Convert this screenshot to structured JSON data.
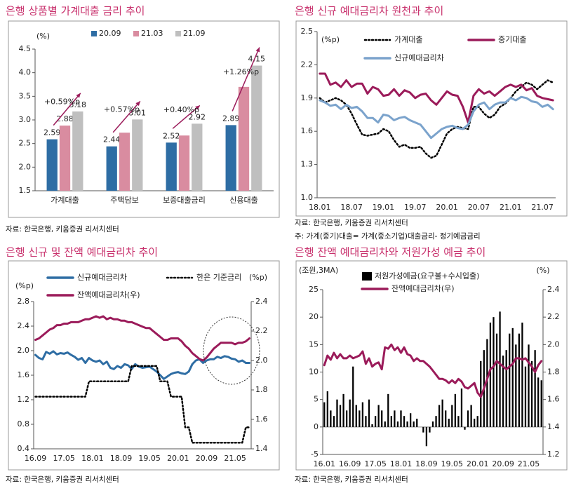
{
  "chart_data": [
    {
      "type": "bar",
      "title": "은행 상품별 가계대출 금리 추이",
      "source": "자료: 한국은행, 키움증권 리서치센터",
      "y_unit": "(%)",
      "categories": [
        "가계대출",
        "주택담보",
        "보증대출금리",
        "신용대출"
      ],
      "series": [
        {
          "name": "20.09",
          "color": "#2e6da4",
          "label_color": "#2e6da4",
          "values": [
            2.59,
            2.44,
            2.52,
            2.89
          ],
          "value_labels": [
            "2.59",
            "2.44",
            "2.52",
            "2.89"
          ]
        },
        {
          "name": "21.03",
          "color": "#d98ca0",
          "label_color": "#d98ca0",
          "values": [
            2.88,
            2.73,
            2.67,
            3.7
          ],
          "value_labels": [
            "2.88",
            null,
            null,
            null
          ]
        },
        {
          "name": "21.09",
          "color": "#bfbfbf",
          "label_color": "#222222",
          "values": [
            3.18,
            3.01,
            2.92,
            4.15
          ],
          "value_labels": [
            "3.18",
            "3.01",
            "2.92",
            "4.15"
          ]
        }
      ],
      "annotations": [
        "+0.59%p",
        "+0.57%p",
        "+0.40%p",
        "+1.26%p"
      ],
      "annotation_color": "#9b1b5a",
      "ylim": [
        1.5,
        4.5
      ],
      "yticks": [
        1.5,
        {
          "value": 2,
          "label": "2.0"
        },
        2.5,
        {
          "value": 3,
          "label": "3.0"
        },
        3.5,
        {
          "value": 4,
          "label": "4.0"
        },
        4.5
      ]
    },
    {
      "type": "line",
      "title": "은행 신규 예대금리차 원천과 추이",
      "source": "자료: 한국은행, 키움증권 리서치센터",
      "note": "주: 가계(중기)대출= 가계(중소기업)대출금리- 정기예금금리",
      "y_unit": "(%p)",
      "categories": [
        "18.01",
        null,
        null,
        null,
        null,
        null,
        "18.07",
        null,
        null,
        null,
        null,
        null,
        "19.01",
        null,
        null,
        null,
        null,
        null,
        "19.07",
        null,
        null,
        null,
        null,
        null,
        "20.01",
        null,
        null,
        null,
        null,
        null,
        "20.07",
        null,
        null,
        null,
        null,
        null,
        "21.01",
        null,
        null,
        null,
        null,
        null,
        "21.07",
        null,
        null
      ],
      "series": [
        {
          "name": "가계대출",
          "color": "#000000",
          "style": "dotted",
          "values": [
            1.9,
            1.86,
            1.88,
            1.9,
            1.88,
            1.84,
            1.76,
            1.66,
            1.57,
            1.56,
            1.57,
            1.58,
            1.62,
            1.6,
            1.52,
            1.46,
            1.48,
            1.45,
            1.45,
            1.46,
            1.4,
            1.36,
            1.38,
            1.48,
            1.58,
            1.62,
            1.64,
            1.63,
            1.62,
            1.82,
            1.82,
            1.76,
            1.72,
            1.75,
            1.82,
            1.85,
            1.9,
            1.96,
            2.0,
            2.04,
            2.02,
            1.98,
            2.02,
            2.06,
            2.04
          ]
        },
        {
          "name": "중기대출",
          "color": "#9b1b5a",
          "values": [
            2.12,
            2.12,
            2.02,
            2.04,
            2.0,
            2.06,
            2.0,
            2.03,
            2.03,
            1.94,
            2.0,
            1.98,
            1.92,
            1.93,
            1.98,
            1.92,
            1.97,
            1.95,
            1.9,
            1.93,
            1.94,
            1.88,
            1.84,
            1.9,
            1.96,
            1.93,
            1.92,
            1.82,
            1.68,
            1.92,
            1.98,
            1.94,
            1.96,
            1.92,
            1.96,
            2.0,
            2.02,
            2.0,
            2.02,
            1.97,
            1.99,
            1.92,
            1.9,
            1.89,
            1.88
          ]
        },
        {
          "name": "신규예대금리차",
          "color": "#7ba3cc",
          "values": [
            1.88,
            1.86,
            1.83,
            1.84,
            1.8,
            1.84,
            1.81,
            1.82,
            1.78,
            1.72,
            1.72,
            1.68,
            1.75,
            1.74,
            1.7,
            1.72,
            1.73,
            1.7,
            1.68,
            1.66,
            1.6,
            1.54,
            1.58,
            1.62,
            1.64,
            1.65,
            1.63,
            1.62,
            1.66,
            1.78,
            1.84,
            1.86,
            1.8,
            1.84,
            1.86,
            1.86,
            1.9,
            1.88,
            1.91,
            1.9,
            1.87,
            1.86,
            1.82,
            1.84,
            1.8
          ]
        }
      ],
      "ylim": [
        1.0,
        2.5
      ],
      "yticks": [
        {
          "value": 1,
          "label": "1.0"
        },
        1.3,
        1.6,
        1.9,
        2.2,
        2.5
      ]
    },
    {
      "type": "line",
      "title": "은행 신규 및 잔액 예대금리차 추이",
      "source": "자료: 한국은행, 키움증권 리서치센터",
      "y_unit": "(%p)",
      "y2_unit": "(%p)",
      "categories": [
        "16.09",
        null,
        null,
        null,
        null,
        null,
        null,
        null,
        "17.05",
        null,
        null,
        null,
        null,
        null,
        null,
        null,
        "18.01",
        null,
        null,
        null,
        null,
        null,
        null,
        null,
        "18.09",
        null,
        null,
        null,
        null,
        null,
        null,
        null,
        "19.05",
        null,
        null,
        null,
        null,
        null,
        null,
        null,
        "20.01",
        null,
        null,
        null,
        null,
        null,
        null,
        null,
        "20.09",
        null,
        null,
        null,
        null,
        null,
        null,
        null,
        "21.05",
        null,
        null,
        null,
        null
      ],
      "series": [
        {
          "name": "신규예대금리차",
          "color": "#2e6da4",
          "values": [
            1.93,
            1.88,
            1.86,
            1.98,
            1.95,
            1.99,
            1.94,
            1.96,
            1.95,
            1.97,
            1.93,
            1.9,
            1.85,
            1.88,
            1.8,
            1.88,
            1.84,
            1.82,
            1.84,
            1.78,
            1.82,
            1.72,
            1.7,
            1.75,
            1.72,
            1.78,
            1.76,
            1.7,
            1.78,
            1.74,
            1.72,
            1.73,
            1.74,
            1.7,
            1.66,
            1.6,
            1.54,
            1.58,
            1.62,
            1.64,
            1.65,
            1.63,
            1.62,
            1.66,
            1.78,
            1.84,
            1.86,
            1.8,
            1.84,
            1.86,
            1.86,
            1.9,
            1.88,
            1.91,
            1.9,
            1.87,
            1.86,
            1.82,
            1.84,
            1.8,
            1.8
          ]
        },
        {
          "name": "한은 기준금리",
          "color": "#000000",
          "style": "dotted",
          "values": [
            1.25,
            1.25,
            1.25,
            1.25,
            1.25,
            1.25,
            1.25,
            1.25,
            1.25,
            1.25,
            1.25,
            1.25,
            1.25,
            1.25,
            1.25,
            1.5,
            1.5,
            1.5,
            1.5,
            1.5,
            1.5,
            1.5,
            1.5,
            1.5,
            1.5,
            1.5,
            1.5,
            1.75,
            1.75,
            1.75,
            1.75,
            1.75,
            1.75,
            1.75,
            1.75,
            1.5,
            1.5,
            1.5,
            1.25,
            1.25,
            1.25,
            1.25,
            0.75,
            0.75,
            0.5,
            0.5,
            0.5,
            0.5,
            0.5,
            0.5,
            0.5,
            0.5,
            0.5,
            0.5,
            0.5,
            0.5,
            0.5,
            0.5,
            0.5,
            0.75,
            0.75
          ]
        },
        {
          "name": "잔액예대금리차(우)",
          "color": "#9b1b5a",
          "axis": "y2",
          "values": [
            2.14,
            2.15,
            2.17,
            2.19,
            2.21,
            2.22,
            2.24,
            2.24,
            2.25,
            2.25,
            2.26,
            2.26,
            2.26,
            2.27,
            2.28,
            2.28,
            2.29,
            2.3,
            2.29,
            2.3,
            2.28,
            2.29,
            2.28,
            2.28,
            2.27,
            2.27,
            2.26,
            2.26,
            2.25,
            2.24,
            2.23,
            2.22,
            2.22,
            2.2,
            2.18,
            2.16,
            2.14,
            2.14,
            2.15,
            2.15,
            2.15,
            2.13,
            2.1,
            2.08,
            2.05,
            2.03,
            2.01,
            2.0,
            2.02,
            2.05,
            2.08,
            2.1,
            2.12,
            2.12,
            2.12,
            2.12,
            2.11,
            2.12,
            2.12,
            2.13,
            2.15
          ]
        }
      ],
      "ylim": [
        0.4,
        2.8
      ],
      "yticks": [
        0.4,
        0.8,
        1.2,
        1.6,
        {
          "value": 2,
          "label": "2.0"
        },
        2.4,
        2.8
      ],
      "y2lim": [
        1.4,
        2.4
      ],
      "y2ticks": [
        1.4,
        1.6,
        1.8,
        {
          "value": 2,
          "label": "2.0"
        },
        2.2,
        2.4
      ]
    },
    {
      "type": "combo",
      "title": "은행 잔액 예대금리차와 저원가성 예금 추이",
      "source": "자료: 한국은행, 키움증권 리서치센터",
      "y_unit": "(조원,3MA)",
      "y2_unit": "(%)",
      "categories": [
        "16.01",
        null,
        null,
        null,
        null,
        null,
        null,
        null,
        "16.09",
        null,
        null,
        null,
        null,
        null,
        null,
        null,
        "17.05",
        null,
        null,
        null,
        null,
        null,
        null,
        null,
        "18.01",
        null,
        null,
        null,
        null,
        null,
        null,
        null,
        "18.09",
        null,
        null,
        null,
        null,
        null,
        null,
        null,
        "19.05",
        null,
        null,
        null,
        null,
        null,
        null,
        null,
        "20.01",
        null,
        null,
        null,
        null,
        null,
        null,
        null,
        "20.09",
        null,
        null,
        null,
        null,
        null,
        null,
        null,
        "21.05",
        null,
        null,
        null,
        null
      ],
      "series": [
        {
          "name": "저원가성예금(요구불+수시입출)",
          "color": "#000000",
          "type": "bar",
          "values": [
            4.5,
            6.5,
            3,
            2,
            5,
            4,
            6,
            3,
            5,
            11,
            4,
            3,
            4.5,
            2,
            5,
            0.5,
            2,
            4,
            3,
            1,
            6,
            2,
            3,
            1,
            3,
            2,
            1,
            2.5,
            1,
            1.5,
            0,
            -1,
            -3.5,
            -1,
            1,
            2,
            4,
            5,
            3,
            1.5,
            4,
            6,
            2,
            7,
            -0.5,
            3,
            4,
            1.5,
            2,
            12,
            14,
            16,
            19,
            20,
            17,
            21,
            13,
            14,
            17,
            18,
            15,
            17,
            19,
            11,
            15,
            12,
            14,
            9,
            8.5
          ]
        },
        {
          "name": "잔액예대금리차(우)",
          "color": "#9b1b5a",
          "type": "line",
          "axis": "y2",
          "values": [
            1.85,
            1.92,
            1.89,
            1.94,
            1.9,
            1.93,
            1.9,
            1.9,
            1.92,
            1.9,
            1.91,
            1.92,
            1.95,
            1.86,
            1.9,
            1.84,
            1.86,
            1.87,
            1.82,
            1.98,
            1.97,
            2.0,
            1.96,
            1.98,
            1.94,
            1.98,
            1.93,
            1.92,
            1.88,
            1.9,
            1.88,
            1.88,
            1.86,
            1.84,
            1.81,
            1.78,
            1.75,
            1.75,
            1.74,
            1.72,
            1.74,
            1.72,
            1.75,
            1.73,
            1.69,
            1.68,
            1.7,
            1.72,
            1.65,
            1.62,
            1.68,
            1.75,
            1.82,
            1.84,
            1.88,
            1.86,
            1.84,
            1.82,
            1.84,
            1.86,
            1.9,
            1.9,
            1.89,
            1.9,
            1.87,
            1.84,
            1.8,
            1.85,
            1.88
          ]
        }
      ],
      "ylim": [
        -5,
        25
      ],
      "yticks": [
        -5,
        0,
        5,
        10,
        15,
        20,
        25
      ],
      "y2lim": [
        1.2,
        2.4
      ],
      "y2ticks": [
        1.2,
        1.4,
        1.6,
        1.8,
        {
          "value": 2,
          "label": "2.0"
        },
        2.2,
        2.4
      ]
    }
  ]
}
